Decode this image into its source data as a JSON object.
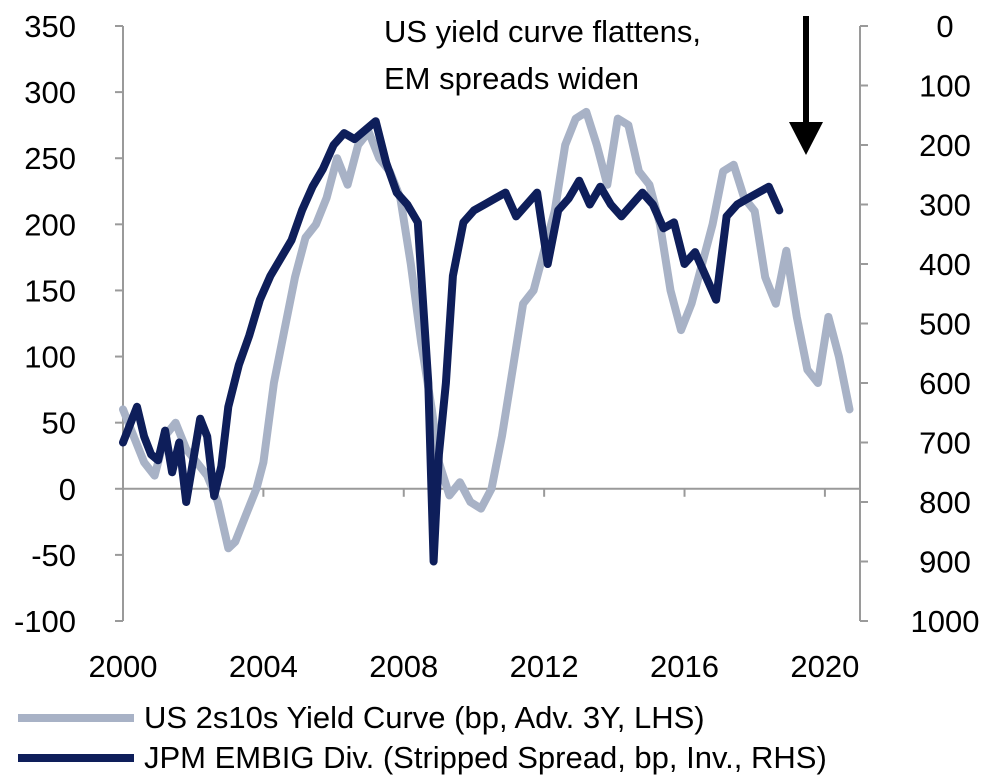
{
  "chart_data": {
    "type": "line",
    "annotation": [
      "US yield curve flattens,",
      "EM spreads widen"
    ],
    "x_ticks": [
      "2000",
      "2004",
      "2008",
      "2012",
      "2016",
      "2020"
    ],
    "xlim": [
      2000,
      2021
    ],
    "left_axis": {
      "ticks": [
        "350",
        "300",
        "250",
        "200",
        "150",
        "100",
        "50",
        "0",
        "-50",
        "-100"
      ],
      "ylim": [
        -100,
        350
      ]
    },
    "right_axis": {
      "ticks": [
        "0",
        "100",
        "200",
        "300",
        "400",
        "500",
        "600",
        "700",
        "800",
        "900",
        "1000"
      ],
      "ylim": [
        1000,
        0
      ],
      "inverted": true
    },
    "grid": false,
    "legend_position": "bottom",
    "series": [
      {
        "name": "US 2s10s Yield Curve (bp, Adv. 3Y, LHS)",
        "axis": "left",
        "color": "#a8b2c6",
        "x": [
          2000.0,
          2000.3,
          2000.6,
          2000.9,
          2001.2,
          2001.5,
          2001.8,
          2002.1,
          2002.4,
          2002.7,
          2003.0,
          2003.2,
          2003.5,
          2003.8,
          2004.0,
          2004.3,
          2004.6,
          2004.9,
          2005.2,
          2005.5,
          2005.8,
          2006.1,
          2006.4,
          2006.7,
          2007.0,
          2007.3,
          2007.6,
          2007.9,
          2008.2,
          2008.5,
          2008.8,
          2009.0,
          2009.3,
          2009.6,
          2009.9,
          2010.2,
          2010.5,
          2010.8,
          2011.1,
          2011.4,
          2011.7,
          2012.0,
          2012.3,
          2012.6,
          2012.9,
          2013.2,
          2013.5,
          2013.8,
          2014.1,
          2014.4,
          2014.7,
          2015.0,
          2015.3,
          2015.6,
          2015.9,
          2016.2,
          2016.5,
          2016.8,
          2017.1,
          2017.4,
          2017.7,
          2018.0,
          2018.3,
          2018.6,
          2018.9,
          2019.2,
          2019.5,
          2019.8,
          2020.1,
          2020.4,
          2020.7
        ],
        "values": [
          60,
          40,
          20,
          10,
          40,
          50,
          30,
          20,
          10,
          -10,
          -45,
          -40,
          -20,
          0,
          20,
          80,
          120,
          160,
          190,
          200,
          220,
          250,
          230,
          260,
          270,
          250,
          240,
          220,
          170,
          110,
          60,
          20,
          -5,
          5,
          -10,
          -15,
          0,
          40,
          90,
          140,
          150,
          180,
          210,
          260,
          280,
          285,
          260,
          230,
          280,
          275,
          240,
          230,
          200,
          150,
          120,
          140,
          170,
          200,
          240,
          245,
          220,
          210,
          160,
          140,
          180,
          130,
          90,
          80,
          130,
          100,
          60
        ]
      },
      {
        "name": "JPM EMBIG Div. (Stripped Spread, bp, Inv., RHS)",
        "axis": "right",
        "color": "#0e1e5a",
        "x": [
          2000.0,
          2000.2,
          2000.4,
          2000.6,
          2000.8,
          2001.0,
          2001.2,
          2001.4,
          2001.6,
          2001.8,
          2002.0,
          2002.2,
          2002.4,
          2002.6,
          2002.8,
          2003.0,
          2003.3,
          2003.6,
          2003.9,
          2004.2,
          2004.5,
          2004.8,
          2005.1,
          2005.4,
          2005.7,
          2006.0,
          2006.3,
          2006.6,
          2006.9,
          2007.2,
          2007.5,
          2007.8,
          2008.1,
          2008.4,
          2008.7,
          2008.85,
          2009.0,
          2009.2,
          2009.4,
          2009.7,
          2010.0,
          2010.3,
          2010.6,
          2010.9,
          2011.2,
          2011.5,
          2011.8,
          2012.1,
          2012.4,
          2012.7,
          2013.0,
          2013.3,
          2013.6,
          2013.9,
          2014.2,
          2014.5,
          2014.8,
          2015.1,
          2015.4,
          2015.7,
          2016.0,
          2016.3,
          2016.6,
          2016.9,
          2017.2,
          2017.5,
          2017.8,
          2018.1,
          2018.4,
          2018.7
        ],
        "values": [
          700,
          670,
          640,
          690,
          720,
          730,
          680,
          750,
          700,
          800,
          730,
          660,
          690,
          790,
          740,
          640,
          570,
          520,
          460,
          420,
          390,
          360,
          310,
          270,
          240,
          200,
          180,
          190,
          175,
          160,
          230,
          280,
          300,
          330,
          600,
          900,
          720,
          600,
          420,
          330,
          310,
          300,
          290,
          280,
          320,
          300,
          280,
          400,
          310,
          290,
          260,
          300,
          270,
          300,
          320,
          300,
          280,
          300,
          340,
          330,
          400,
          380,
          420,
          460,
          320,
          300,
          290,
          280,
          270,
          310
        ]
      }
    ]
  }
}
